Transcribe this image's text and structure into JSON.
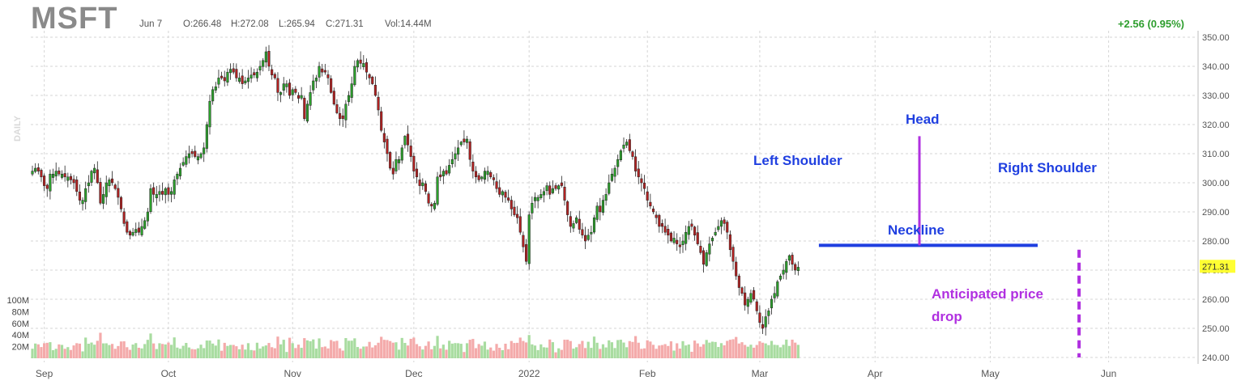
{
  "header": {
    "ticker": "MSFT",
    "date": "Jun 7",
    "open": "O:266.48",
    "high": "H:272.08",
    "low": "L:265.94",
    "close": "C:271.31",
    "volume": "Vol:14.44M",
    "change": "+2.56 (0.95%)",
    "period_label": "DAILY"
  },
  "annotations": {
    "left_shoulder": "Left Shoulder",
    "head": "Head",
    "right_shoulder": "Right Shoulder",
    "neckline": "Neckline",
    "drop_line1": "Anticipated price",
    "drop_line2": "drop"
  },
  "colors": {
    "up": "#2ca02c",
    "down": "#b22222",
    "vol_up": "#a8dca0",
    "vol_down": "#f4aaaa",
    "annotation_blue": "#1f3fe0",
    "annotation_purple": "#b030e0",
    "last_price_bg": "#ffff33",
    "grid": "#d6d6d6"
  },
  "chart_data": {
    "type": "candlestick",
    "y_axis": {
      "min": 240,
      "max": 350,
      "ticks": [
        "350.00",
        "340.00",
        "330.00",
        "320.00",
        "310.00",
        "300.00",
        "290.00",
        "280.00",
        "270.00",
        "260.00",
        "250.00",
        "240.00"
      ],
      "tick_values": [
        350,
        340,
        330,
        320,
        310,
        300,
        290,
        280,
        270,
        260,
        250,
        240
      ]
    },
    "volume_axis": {
      "ticks": [
        "100M",
        "80M",
        "60M",
        "40M",
        "20M"
      ],
      "tick_values": [
        100,
        80,
        60,
        40,
        20
      ]
    },
    "x_labels": [
      "Sep",
      "Oct",
      "Nov",
      "Dec",
      "2022",
      "Feb",
      "Mar",
      "Apr",
      "May",
      "Jun"
    ],
    "x_label_bars": [
      4,
      46,
      88,
      129,
      168,
      208,
      246,
      285,
      324,
      364
    ],
    "last_price": "271.31",
    "last_price_value": 271.31,
    "neckline_value": 278.5,
    "neckline_bars": [
      266,
      340
    ],
    "head_line_bars": [
      300,
      300
    ],
    "head_line_values": [
      316,
      278.5
    ],
    "drop_line_bar": 354,
    "drop_line_values": [
      277,
      240
    ],
    "closes": [
      304,
      305,
      304,
      302,
      299,
      298,
      303,
      303,
      304,
      303,
      303,
      302,
      302,
      301,
      300,
      297,
      294,
      294,
      298,
      300,
      304,
      305,
      300,
      293,
      296,
      300,
      301,
      300,
      298,
      295,
      291,
      286,
      283,
      282,
      283,
      284,
      283,
      285,
      287,
      290,
      298,
      296,
      296,
      297,
      296,
      298,
      296,
      297,
      301,
      303,
      305,
      307,
      309,
      310,
      310,
      309,
      309,
      310,
      312,
      320,
      328,
      332,
      333,
      336,
      336,
      335,
      338,
      339,
      338,
      336,
      336,
      334,
      335,
      336,
      337,
      337,
      338,
      340,
      342,
      345,
      340,
      337,
      336,
      331,
      331,
      334,
      334,
      330,
      332,
      331,
      329,
      330,
      322,
      327,
      331,
      335,
      336,
      340,
      338,
      338,
      336,
      331,
      327,
      324,
      322,
      322,
      327,
      330,
      334,
      340,
      342,
      341,
      341,
      338,
      336,
      334,
      330,
      325,
      318,
      314,
      310,
      305,
      303,
      308,
      308,
      312,
      316,
      313,
      309,
      304,
      302,
      299,
      300,
      297,
      293,
      292,
      293,
      302,
      302,
      304,
      303,
      306,
      308,
      310,
      312,
      314,
      314,
      315,
      308,
      304,
      302,
      301,
      302,
      304,
      304,
      302,
      301,
      298,
      296,
      297,
      295,
      294,
      291,
      289,
      288,
      283,
      278,
      273,
      289,
      293,
      295,
      295,
      296,
      297,
      299,
      296,
      298,
      298,
      299,
      299,
      294,
      289,
      285,
      286,
      288,
      284,
      282,
      280,
      282,
      283,
      288,
      292,
      290,
      294,
      296,
      300,
      303,
      305,
      308,
      311,
      313,
      314,
      311,
      309,
      304,
      302,
      300,
      298,
      294,
      292,
      290,
      288,
      285,
      285,
      283,
      282,
      280,
      281,
      279,
      278,
      280,
      283,
      285,
      285,
      282,
      279,
      276,
      272,
      276,
      279,
      281,
      283,
      285,
      287,
      286,
      283,
      277,
      273,
      268,
      264,
      262,
      258,
      260,
      262,
      260,
      256,
      252,
      250,
      254,
      256,
      260,
      262,
      266,
      268,
      270,
      273,
      275,
      272,
      270,
      271
    ]
  }
}
